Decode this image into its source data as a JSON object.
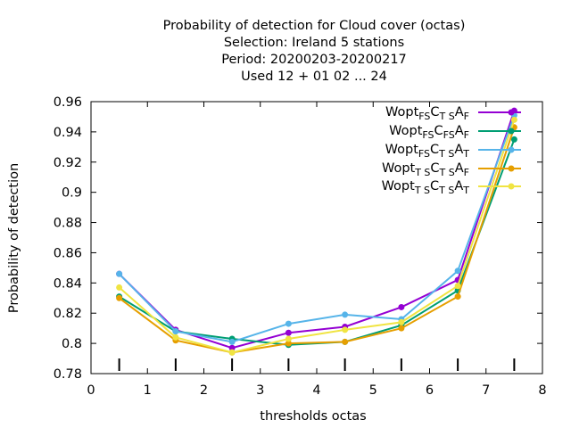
{
  "chart_data": {
    "type": "line",
    "title_lines": [
      "Probability of detection  for Cloud cover (octas)",
      "Selection: Ireland      5 stations",
      "Period: 20200203-20200217",
      "Used  12 + 01 02 ... 24"
    ],
    "xlabel": "thresholds octas",
    "ylabel": "Probability of detection",
    "xlim": [
      0,
      8
    ],
    "ylim": [
      0.78,
      0.96
    ],
    "xticks": [
      0,
      1,
      2,
      3,
      4,
      5,
      6,
      7,
      8
    ],
    "yticks": [
      0.78,
      0.8,
      0.82,
      0.84,
      0.86,
      0.88,
      0.9,
      0.92,
      0.94,
      0.96
    ],
    "ytick_labels": [
      "0.78",
      "0.8",
      "0.82",
      "0.84",
      "0.86",
      "0.88",
      "0.9",
      "0.92",
      "0.94",
      "0.96"
    ],
    "grid": false,
    "legend_position": "top-right",
    "x": [
      0.5,
      1.5,
      2.5,
      3.5,
      4.5,
      5.5,
      6.5,
      7.5
    ],
    "series": [
      {
        "base": "Wopt",
        "sub1": "FS",
        "mid": "C",
        "sub2": "T S",
        "end": "A",
        "sub3": "F",
        "color": "#9400d3",
        "values": [
          0.846,
          0.809,
          0.797,
          0.807,
          0.811,
          0.824,
          0.842,
          0.954
        ]
      },
      {
        "base": "Wopt",
        "sub1": "FS",
        "mid": "C",
        "sub2": "FS",
        "end": "A",
        "sub3": "F",
        "color": "#009e73",
        "values": [
          0.831,
          0.808,
          0.803,
          0.799,
          0.801,
          0.812,
          0.835,
          0.935
        ]
      },
      {
        "base": "Wopt",
        "sub1": "FS",
        "mid": "C",
        "sub2": "T S",
        "end": "A",
        "sub3": "T",
        "color": "#56b4e9",
        "values": [
          0.846,
          0.808,
          0.801,
          0.813,
          0.819,
          0.816,
          0.848,
          0.951
        ]
      },
      {
        "base": "Wopt",
        "sub1": "T S",
        "mid": "C",
        "sub2": "T S",
        "end": "A",
        "sub3": "F",
        "color": "#e69f00",
        "values": [
          0.83,
          0.802,
          0.794,
          0.8,
          0.801,
          0.81,
          0.831,
          0.943
        ]
      },
      {
        "base": "Wopt",
        "sub1": "T S",
        "mid": "C",
        "sub2": "T S",
        "end": "A",
        "sub3": "T",
        "color": "#f0e442",
        "values": [
          0.837,
          0.804,
          0.794,
          0.803,
          0.809,
          0.814,
          0.838,
          0.948
        ]
      }
    ]
  }
}
